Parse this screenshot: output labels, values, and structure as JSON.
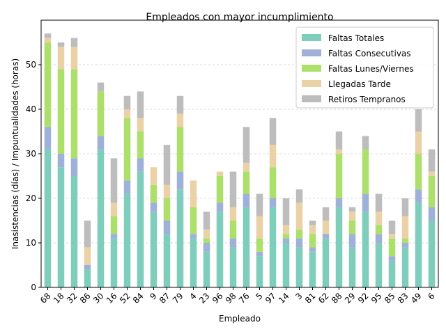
{
  "chart_data": {
    "type": "bar",
    "stacked": true,
    "title": "Empleados con mayor incumplimiento",
    "xlabel": "Empleado",
    "ylabel": "Inasistencias (días) / Impuntualidades (horas)",
    "ylim": [
      0,
      60
    ],
    "yticks": [
      0,
      10,
      20,
      30,
      40,
      50
    ],
    "grid": "y-dashed",
    "legend_position": "top-right",
    "categories": [
      "68",
      "18",
      "32",
      "86",
      "30",
      "16",
      "52",
      "84",
      "9",
      "87",
      "79",
      "4",
      "23",
      "96",
      "98",
      "76",
      "5",
      "97",
      "14",
      "3",
      "81",
      "62",
      "88",
      "29",
      "92",
      "95",
      "85",
      "83",
      "49",
      "6"
    ],
    "series": [
      {
        "name": "Faltas Totales",
        "color": "#7fcdbb",
        "values": [
          31,
          27,
          25,
          4,
          31,
          11,
          21,
          26,
          17,
          12,
          22,
          11,
          8,
          17,
          9,
          18,
          7,
          18,
          10,
          9,
          8,
          11,
          18,
          9,
          17,
          10,
          6,
          9,
          19,
          15
        ]
      },
      {
        "name": "Faltas Consecutivas",
        "color": "#9fb0d9",
        "values": [
          5,
          3,
          4,
          1,
          3,
          1,
          3,
          3,
          2,
          3,
          4,
          1,
          2,
          2,
          2,
          3,
          1,
          2,
          1,
          2,
          1,
          1,
          2,
          3,
          4,
          2,
          1,
          1,
          3,
          3
        ]
      },
      {
        "name": "Faltas Lunes/Viernes",
        "color": "#addf6b",
        "values": [
          19,
          19,
          20,
          0,
          10,
          4,
          14,
          6,
          4,
          5,
          10,
          6,
          1,
          6,
          4,
          5,
          3,
          7,
          1,
          2,
          3,
          0,
          10,
          3,
          10,
          2,
          4,
          1,
          8,
          7
        ]
      },
      {
        "name": "Llegadas Tarde",
        "color": "#ead2a6",
        "values": [
          1,
          5,
          5,
          4,
          0,
          3,
          2,
          3,
          4,
          3,
          3,
          6,
          2,
          1,
          3,
          2,
          5,
          5,
          2,
          6,
          2,
          3,
          1,
          2,
          0,
          3,
          1,
          5,
          5,
          1
        ]
      },
      {
        "name": "Retiros Tempranos",
        "color": "#bdbdbd",
        "values": [
          1,
          1,
          2,
          6,
          2,
          10,
          3,
          6,
          0,
          9,
          4,
          0,
          4,
          0,
          8,
          8,
          5,
          6,
          6,
          3,
          1,
          3,
          4,
          1,
          3,
          4,
          3,
          4,
          5,
          5
        ]
      }
    ]
  }
}
